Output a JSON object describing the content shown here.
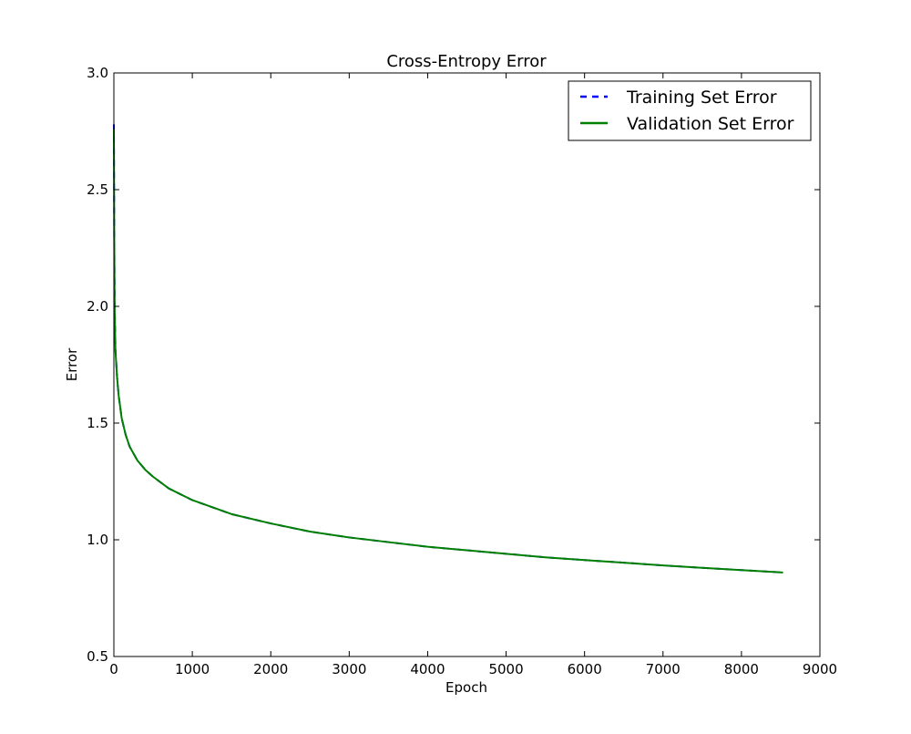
{
  "chart_data": {
    "type": "line",
    "title": "Cross-Entropy Error",
    "xlabel": "Epoch",
    "ylabel": "Error",
    "xlim": [
      0,
      9000
    ],
    "ylim": [
      0.5,
      3.0
    ],
    "xticks": [
      0,
      1000,
      2000,
      3000,
      4000,
      5000,
      6000,
      7000,
      8000,
      9000
    ],
    "xtick_labels": [
      "0",
      "1000",
      "2000",
      "3000",
      "4000",
      "5000",
      "6000",
      "7000",
      "8000",
      "9000"
    ],
    "yticks": [
      0.5,
      1.0,
      1.5,
      2.0,
      2.5,
      3.0
    ],
    "ytick_labels": [
      "0.5",
      "1.0",
      "1.5",
      "2.0",
      "2.5",
      "3.0"
    ],
    "grid": false,
    "legend_position": "top-right",
    "series": [
      {
        "name": "Training Set Error",
        "color": "#0000ff",
        "style": "dashed",
        "x": [
          0,
          5,
          10,
          20,
          40,
          60,
          100,
          150,
          200,
          300,
          400,
          500,
          700,
          1000,
          1500,
          2000,
          2500,
          3000,
          3500,
          4000,
          4500,
          5000,
          5500,
          6000,
          6500,
          7000,
          7500,
          8000,
          8530
        ],
        "y": [
          2.78,
          2.3,
          2.0,
          1.82,
          1.7,
          1.62,
          1.52,
          1.45,
          1.4,
          1.34,
          1.3,
          1.27,
          1.22,
          1.17,
          1.11,
          1.07,
          1.035,
          1.01,
          0.99,
          0.97,
          0.955,
          0.94,
          0.925,
          0.913,
          0.902,
          0.89,
          0.88,
          0.87,
          0.86
        ]
      },
      {
        "name": "Validation Set Error",
        "color": "#008000",
        "style": "solid",
        "x": [
          0,
          5,
          10,
          20,
          40,
          60,
          100,
          150,
          200,
          300,
          400,
          500,
          700,
          1000,
          1500,
          2000,
          2500,
          3000,
          3500,
          4000,
          4500,
          5000,
          5500,
          6000,
          6500,
          7000,
          7500,
          8000,
          8530
        ],
        "y": [
          2.76,
          2.28,
          1.99,
          1.81,
          1.7,
          1.62,
          1.52,
          1.45,
          1.4,
          1.34,
          1.3,
          1.27,
          1.22,
          1.17,
          1.11,
          1.07,
          1.035,
          1.01,
          0.99,
          0.97,
          0.955,
          0.94,
          0.925,
          0.913,
          0.902,
          0.89,
          0.88,
          0.87,
          0.86
        ]
      }
    ]
  }
}
